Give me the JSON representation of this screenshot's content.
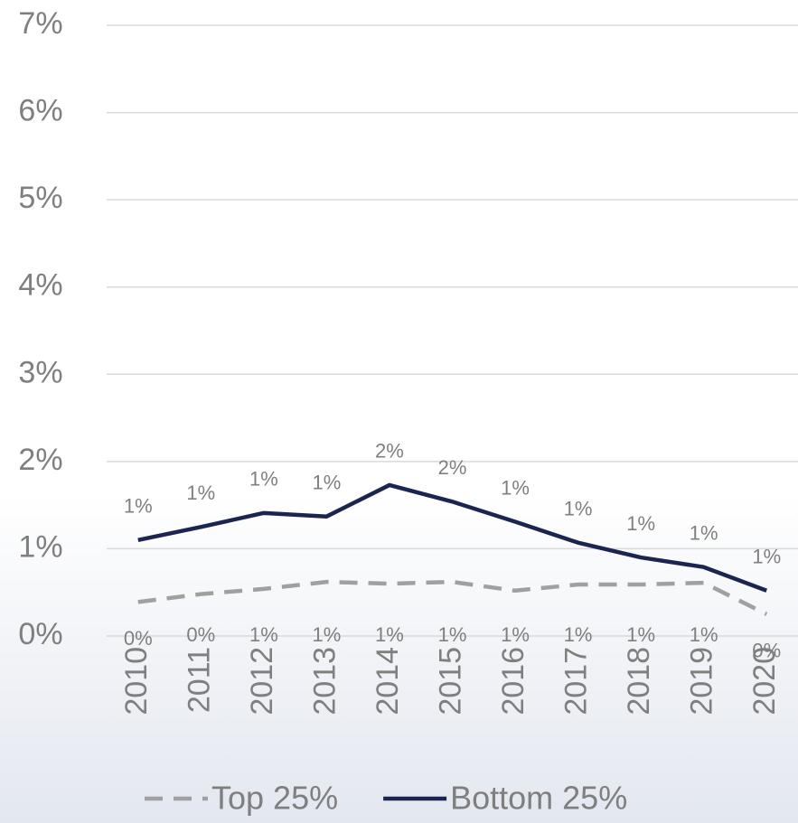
{
  "chart_data": {
    "type": "line",
    "categories": [
      "2010",
      "2011",
      "2012",
      "2013",
      "2014",
      "2015",
      "2016",
      "2017",
      "2018",
      "2019",
      "2020"
    ],
    "series": [
      {
        "name": "Top 25%",
        "color": "#a0a0a0",
        "dash": true,
        "values": [
          0.39,
          0.48,
          0.54,
          0.62,
          0.6,
          0.62,
          0.52,
          0.59,
          0.59,
          0.61,
          0.25
        ],
        "value_labels": [
          "0%",
          "0%",
          "1%",
          "1%",
          "1%",
          "1%",
          "1%",
          "1%",
          "1%",
          "1%",
          "0%"
        ]
      },
      {
        "name": "Bottom 25%",
        "color": "#1b2550",
        "dash": false,
        "values": [
          1.1,
          1.25,
          1.41,
          1.37,
          1.73,
          1.54,
          1.31,
          1.07,
          0.9,
          0.79,
          0.52
        ],
        "value_labels": [
          "1%",
          "1%",
          "1%",
          "1%",
          "2%",
          "2%",
          "1%",
          "1%",
          "1%",
          "1%",
          "1%"
        ]
      }
    ],
    "ylim": [
      0,
      7
    ],
    "yticks": [
      {
        "value": 0,
        "label": "0%"
      },
      {
        "value": 1,
        "label": "1%"
      },
      {
        "value": 2,
        "label": "2%"
      },
      {
        "value": 3,
        "label": "3%"
      },
      {
        "value": 4,
        "label": "4%"
      },
      {
        "value": 5,
        "label": "5%"
      },
      {
        "value": 6,
        "label": "6%"
      },
      {
        "value": 7,
        "label": "7%"
      }
    ],
    "grid": true,
    "legend": "bottom"
  }
}
